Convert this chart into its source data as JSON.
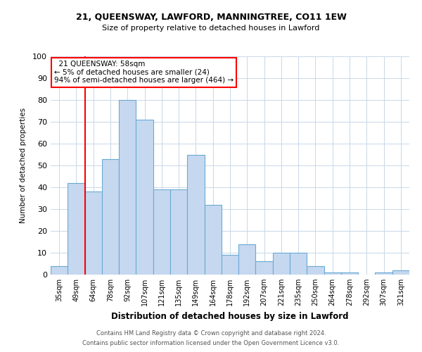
{
  "title1": "21, QUEENSWAY, LAWFORD, MANNINGTREE, CO11 1EW",
  "title2": "Size of property relative to detached houses in Lawford",
  "xlabel": "Distribution of detached houses by size in Lawford",
  "ylabel": "Number of detached properties",
  "footer1": "Contains HM Land Registry data © Crown copyright and database right 2024.",
  "footer2": "Contains public sector information licensed under the Open Government Licence v3.0.",
  "annotation_line1": "21 QUEENSWAY: 58sqm",
  "annotation_line2": "← 5% of detached houses are smaller (24)",
  "annotation_line3": "94% of semi-detached houses are larger (464) →",
  "bar_color": "#c5d8f0",
  "bar_edge_color": "#6aaad4",
  "categories": [
    "35sqm",
    "49sqm",
    "64sqm",
    "78sqm",
    "92sqm",
    "107sqm",
    "121sqm",
    "135sqm",
    "149sqm",
    "164sqm",
    "178sqm",
    "192sqm",
    "207sqm",
    "221sqm",
    "235sqm",
    "250sqm",
    "264sqm",
    "278sqm",
    "292sqm",
    "307sqm",
    "321sqm"
  ],
  "values": [
    4,
    42,
    38,
    53,
    80,
    71,
    39,
    39,
    55,
    32,
    9,
    14,
    6,
    10,
    10,
    4,
    1,
    1,
    0,
    1,
    2
  ],
  "ylim": [
    0,
    100
  ],
  "yticks": [
    0,
    10,
    20,
    30,
    40,
    50,
    60,
    70,
    80,
    90,
    100
  ],
  "red_line_idx": 1.5,
  "background_color": "#ffffff",
  "grid_color": "#c8d8e8"
}
